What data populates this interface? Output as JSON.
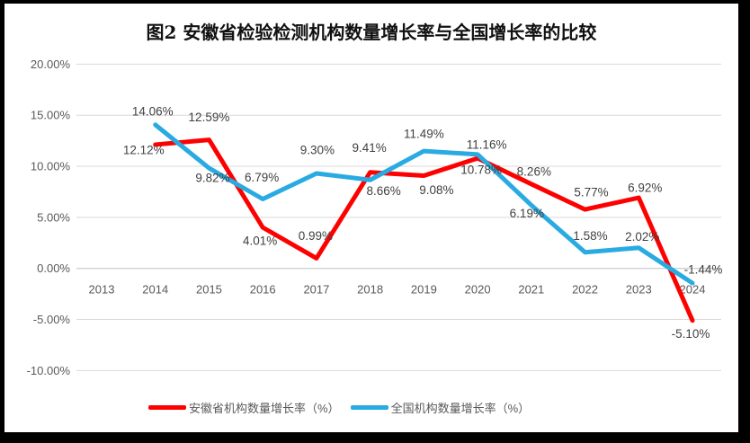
{
  "title": "图2 安徽省检验检测机构数量增长率与全国增长率的比较",
  "chart_data": {
    "type": "line",
    "title": "图2 安徽省检验检测机构数量增长率与全国增长率的比较",
    "categories": [
      "2013",
      "2014",
      "2015",
      "2016",
      "2017",
      "2018",
      "2019",
      "2020",
      "2021",
      "2022",
      "2023",
      "2024"
    ],
    "series": [
      {
        "name": "安徽省机构数量增长率（%）",
        "color": "#FF0000",
        "values": [
          null,
          12.12,
          12.59,
          4.01,
          0.99,
          9.41,
          9.08,
          10.78,
          8.26,
          5.77,
          6.92,
          -5.1
        ]
      },
      {
        "name": "全国机构数量增长率（%）",
        "color": "#29ABE2",
        "values": [
          null,
          14.06,
          9.82,
          6.79,
          9.3,
          8.66,
          11.49,
          11.16,
          6.19,
          1.58,
          2.02,
          -1.44
        ]
      }
    ],
    "xlabel": "",
    "ylabel": "",
    "ylim": [
      -10,
      20
    ],
    "ytick_values": [
      20,
      15,
      10,
      5,
      0,
      -5,
      -10
    ],
    "ytick_labels": [
      "20.00%",
      "15.00%",
      "10.00%",
      "5.00%",
      "0.00%",
      "-5.00%",
      "-10.00%"
    ],
    "grid": true,
    "data_labels": true,
    "legend_position": "bottom",
    "frame_color": "#000000",
    "background_color": "#FFFFFF"
  }
}
